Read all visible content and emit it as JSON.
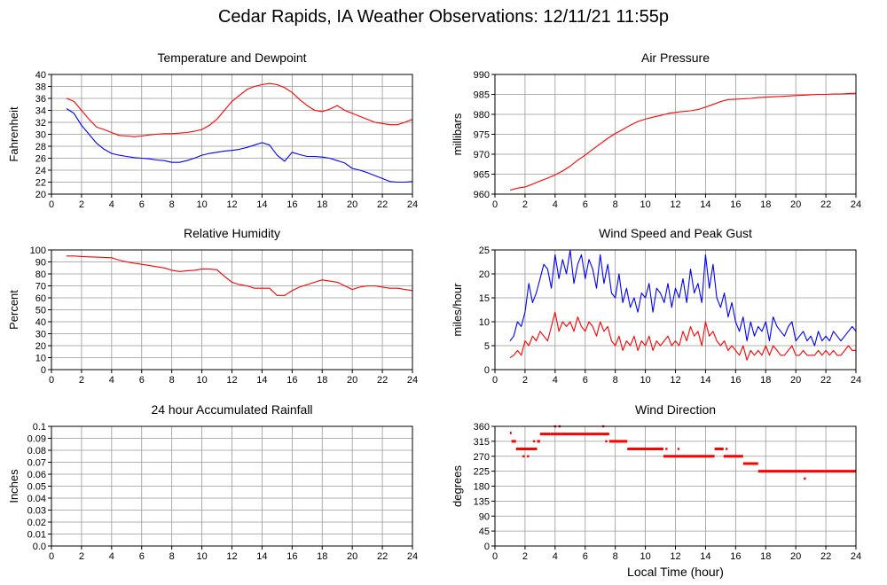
{
  "page": {
    "title": "Cedar Rapids, IA Weather Observations: 12/11/21 11:55p"
  },
  "colors": {
    "red": "#ff0000",
    "blue": "#0000ff",
    "grid": "#999999",
    "frame": "#000000"
  },
  "chart_data": [
    {
      "id": "temp",
      "type": "line",
      "title": "Temperature and Dewpoint",
      "xlabel": "",
      "ylabel": "Fahrenheit",
      "xlim": [
        0,
        24
      ],
      "ylim": [
        20,
        40
      ],
      "xticks": [
        "2",
        "4",
        "6",
        "8",
        "10",
        "12",
        "14",
        "16",
        "18",
        "20",
        "22",
        "24"
      ],
      "yticks": [
        "20",
        "22",
        "24",
        "26",
        "28",
        "30",
        "32",
        "34",
        "36",
        "38",
        "40"
      ],
      "grid": true,
      "series": [
        {
          "color": "#ff0000",
          "x": [
            1,
            1.5,
            2,
            2.5,
            3,
            3.5,
            4,
            4.5,
            5,
            5.5,
            6,
            6.5,
            7,
            7.5,
            8,
            8.5,
            9,
            9.5,
            10,
            10.5,
            11,
            11.5,
            12,
            12.5,
            13,
            13.5,
            14,
            14.5,
            15,
            15.5,
            16,
            16.5,
            17,
            17.5,
            18,
            18.5,
            19,
            19.5,
            20,
            20.5,
            21,
            21.5,
            22,
            22.5,
            23,
            23.5,
            24
          ],
          "y": [
            36,
            35.5,
            34,
            32.5,
            31.2,
            30.8,
            30.3,
            29.8,
            29.7,
            29.6,
            29.7,
            29.9,
            30,
            30.1,
            30.1,
            30.2,
            30.3,
            30.5,
            30.8,
            31.5,
            32.5,
            34,
            35.5,
            36.5,
            37.5,
            38,
            38.3,
            38.5,
            38.3,
            37.8,
            37,
            35.8,
            34.8,
            34,
            33.8,
            34.2,
            34.8,
            34,
            33.5,
            33,
            32.5,
            32,
            31.8,
            31.6,
            31.6,
            32,
            32.5
          ]
        },
        {
          "color": "#0000ff",
          "x": [
            1,
            1.5,
            2,
            2.5,
            3,
            3.5,
            4,
            4.5,
            5,
            5.5,
            6,
            6.5,
            7,
            7.5,
            8,
            8.5,
            9,
            9.5,
            10,
            10.5,
            11,
            11.5,
            12,
            12.5,
            13,
            13.5,
            14,
            14.5,
            15,
            15.5,
            16,
            16.5,
            17,
            17.5,
            18,
            18.5,
            19,
            19.5,
            20,
            20.5,
            21,
            21.5,
            22,
            22.5,
            23,
            23.5,
            24
          ],
          "y": [
            34.3,
            33.5,
            31.5,
            30,
            28.5,
            27.5,
            26.8,
            26.5,
            26.3,
            26.1,
            26,
            25.9,
            25.7,
            25.6,
            25.3,
            25.3,
            25.6,
            26,
            26.5,
            26.8,
            27,
            27.2,
            27.3,
            27.5,
            27.8,
            28.2,
            28.6,
            28.2,
            26.5,
            25.5,
            27,
            26.6,
            26.3,
            26.3,
            26.2,
            26,
            25.6,
            25.2,
            24.3,
            24,
            23.6,
            23.1,
            22.6,
            22.1,
            22,
            22,
            22.1
          ]
        }
      ]
    },
    {
      "id": "pressure",
      "type": "line",
      "title": "Air Pressure",
      "xlabel": "",
      "ylabel": "millibars",
      "xlim": [
        0,
        24
      ],
      "ylim": [
        960,
        990
      ],
      "xticks": [
        "2",
        "4",
        "6",
        "8",
        "10",
        "12",
        "14",
        "16",
        "18",
        "20",
        "22",
        "24"
      ],
      "yticks": [
        "960",
        "965",
        "970",
        "975",
        "980",
        "985",
        "990"
      ],
      "grid": true,
      "series": [
        {
          "color": "#ff0000",
          "x": [
            1,
            1.5,
            2,
            2.5,
            3,
            3.5,
            4,
            4.5,
            5,
            5.5,
            6,
            6.5,
            7,
            7.5,
            8,
            8.5,
            9,
            9.5,
            10,
            10.5,
            11,
            11.5,
            12,
            12.5,
            13,
            13.5,
            14,
            14.5,
            15,
            15.5,
            16,
            16.5,
            17,
            17.5,
            18,
            18.5,
            19,
            19.5,
            20,
            20.5,
            21,
            21.5,
            22,
            22.5,
            23,
            23.5,
            24
          ],
          "y": [
            961,
            961.5,
            961.8,
            962.5,
            963.3,
            964,
            964.8,
            965.8,
            967,
            968.5,
            969.8,
            971.2,
            972.6,
            974,
            975.2,
            976.2,
            977.3,
            978.2,
            978.8,
            979.3,
            979.7,
            980.2,
            980.5,
            980.7,
            980.9,
            981.2,
            981.8,
            982.5,
            983.2,
            983.7,
            983.8,
            983.9,
            984,
            984.2,
            984.3,
            984.4,
            984.5,
            984.6,
            984.7,
            984.8,
            984.9,
            985,
            985,
            985.1,
            985.1,
            985.2,
            985.3
          ]
        }
      ]
    },
    {
      "id": "humidity",
      "type": "line",
      "title": "Relative Humidity",
      "xlabel": "",
      "ylabel": "Percent",
      "xlim": [
        0,
        24
      ],
      "ylim": [
        0,
        100
      ],
      "xticks": [
        "2",
        "4",
        "6",
        "8",
        "10",
        "12",
        "14",
        "16",
        "18",
        "20",
        "22",
        "24"
      ],
      "yticks": [
        "0",
        "10",
        "20",
        "30",
        "40",
        "50",
        "60",
        "70",
        "80",
        "90",
        "100"
      ],
      "grid": true,
      "series": [
        {
          "color": "#ff0000",
          "x": [
            1,
            1.5,
            2,
            2.5,
            3,
            3.5,
            4,
            4.5,
            5,
            5.5,
            6,
            6.5,
            7,
            7.5,
            8,
            8.5,
            9,
            9.5,
            10,
            10.5,
            11,
            11.5,
            12,
            12.5,
            13,
            13.5,
            14,
            14.5,
            15,
            15.5,
            16,
            16.5,
            17,
            17.5,
            18,
            18.5,
            19,
            19.5,
            20,
            20.5,
            21,
            21.5,
            22,
            22.5,
            23,
            23.5,
            24
          ],
          "y": [
            95,
            95,
            94.5,
            94.2,
            94,
            93.8,
            93.5,
            91.5,
            90,
            89,
            88,
            87,
            86,
            85,
            83,
            82,
            82.5,
            83,
            84,
            84,
            83.5,
            78,
            73,
            71,
            70,
            68,
            68,
            68,
            62,
            62,
            66,
            69,
            71,
            73,
            75,
            74,
            73,
            70,
            67,
            69,
            70,
            70,
            69,
            68,
            68,
            67,
            66
          ]
        }
      ]
    },
    {
      "id": "wind",
      "type": "line",
      "title": "Wind Speed and Peak Gust",
      "xlabel": "",
      "ylabel": "miles/hour",
      "xlim": [
        0,
        24
      ],
      "ylim": [
        0,
        25
      ],
      "xticks": [
        "2",
        "4",
        "6",
        "8",
        "10",
        "12",
        "14",
        "16",
        "18",
        "20",
        "22",
        "24"
      ],
      "yticks": [
        "0",
        "5",
        "10",
        "15",
        "20",
        "25"
      ],
      "grid": true,
      "series": [
        {
          "color": "#0000ff",
          "x": [
            1,
            1.25,
            1.5,
            1.75,
            2,
            2.25,
            2.5,
            2.75,
            3,
            3.25,
            3.5,
            3.75,
            4,
            4.25,
            4.5,
            4.75,
            5,
            5.25,
            5.5,
            5.75,
            6,
            6.25,
            6.5,
            6.75,
            7,
            7.25,
            7.5,
            7.75,
            8,
            8.25,
            8.5,
            8.75,
            9,
            9.25,
            9.5,
            9.75,
            10,
            10.25,
            10.5,
            10.75,
            11,
            11.25,
            11.5,
            11.75,
            12,
            12.25,
            12.5,
            12.75,
            13,
            13.25,
            13.5,
            13.75,
            14,
            14.25,
            14.5,
            14.75,
            15,
            15.25,
            15.5,
            15.75,
            16,
            16.25,
            16.5,
            16.75,
            17,
            17.25,
            17.5,
            17.75,
            18,
            18.25,
            18.5,
            18.75,
            19,
            19.25,
            19.5,
            19.75,
            20,
            20.25,
            20.5,
            20.75,
            21,
            21.25,
            21.5,
            21.75,
            22,
            22.25,
            22.5,
            22.75,
            23,
            23.25,
            23.5,
            23.75,
            24
          ],
          "y": [
            6,
            7,
            10,
            9,
            12,
            18,
            14,
            16,
            19,
            22,
            21,
            17,
            24,
            19,
            23,
            20,
            25,
            18,
            22,
            24,
            19,
            23,
            21,
            17,
            24,
            18,
            22,
            16,
            15,
            20,
            14,
            17,
            13,
            15,
            12,
            16,
            15,
            18,
            12,
            17,
            16,
            14,
            18,
            13,
            17,
            15,
            19,
            14,
            21,
            16,
            18,
            14,
            24,
            17,
            22,
            15,
            13,
            16,
            11,
            14,
            10,
            8,
            11,
            6,
            10,
            7,
            9,
            8,
            10,
            6,
            11,
            9,
            8,
            7,
            9,
            10,
            6,
            7,
            8,
            6,
            7,
            5,
            8,
            6,
            7,
            6,
            8,
            7,
            6,
            7,
            8,
            9,
            8
          ]
        },
        {
          "color": "#ff0000",
          "x": [
            1,
            1.25,
            1.5,
            1.75,
            2,
            2.25,
            2.5,
            2.75,
            3,
            3.25,
            3.5,
            3.75,
            4,
            4.25,
            4.5,
            4.75,
            5,
            5.25,
            5.5,
            5.75,
            6,
            6.25,
            6.5,
            6.75,
            7,
            7.25,
            7.5,
            7.75,
            8,
            8.25,
            8.5,
            8.75,
            9,
            9.25,
            9.5,
            9.75,
            10,
            10.25,
            10.5,
            10.75,
            11,
            11.25,
            11.5,
            11.75,
            12,
            12.25,
            12.5,
            12.75,
            13,
            13.25,
            13.5,
            13.75,
            14,
            14.25,
            14.5,
            14.75,
            15,
            15.25,
            15.5,
            15.75,
            16,
            16.25,
            16.5,
            16.75,
            17,
            17.25,
            17.5,
            17.75,
            18,
            18.25,
            18.5,
            18.75,
            19,
            19.25,
            19.5,
            19.75,
            20,
            20.25,
            20.5,
            20.75,
            21,
            21.25,
            21.5,
            21.75,
            22,
            22.25,
            22.5,
            22.75,
            23,
            23.25,
            23.5,
            23.75,
            24
          ],
          "y": [
            2.5,
            3,
            4,
            3,
            6,
            5,
            7,
            6,
            8,
            7,
            6,
            9,
            12,
            8,
            10,
            9,
            10,
            8,
            11,
            9,
            8,
            10,
            9,
            7,
            10,
            8,
            9,
            6,
            5,
            7,
            4,
            6,
            5,
            7,
            4,
            6,
            5,
            7,
            4,
            6,
            5,
            6,
            7,
            5,
            6,
            5,
            8,
            6,
            9,
            7,
            8,
            5,
            10,
            7,
            8,
            6,
            5,
            6,
            4,
            5,
            4,
            3,
            5,
            2,
            4,
            3,
            4,
            3,
            5,
            3,
            5,
            4,
            3,
            3,
            4,
            5,
            3,
            3,
            4,
            3,
            3,
            3,
            4,
            3,
            4,
            3,
            4,
            3,
            3,
            4,
            5,
            4,
            4
          ]
        }
      ]
    },
    {
      "id": "rain",
      "type": "line",
      "title": "24 hour Accumulated Rainfall",
      "xlabel": "",
      "ylabel": "Inches",
      "xlim": [
        0,
        24
      ],
      "ylim": [
        0,
        0.1
      ],
      "xticks": [
        "2",
        "4",
        "6",
        "8",
        "10",
        "12",
        "14",
        "16",
        "18",
        "20",
        "22",
        "24"
      ],
      "yticks": [
        "0.0",
        "0.01",
        "0.02",
        "0.03",
        "0.04",
        "0.05",
        "0.06",
        "0.07",
        "0.08",
        "0.09",
        "0.1"
      ],
      "grid": true,
      "series": [
        {
          "color": "#ff0000",
          "x": [
            1,
            24
          ],
          "y": [
            0,
            0
          ]
        }
      ]
    },
    {
      "id": "winddir",
      "type": "scatter",
      "title": "Wind Direction",
      "xlabel": "Local Time (hour)",
      "ylabel": "degrees",
      "xlim": [
        0,
        24
      ],
      "ylim": [
        0,
        360
      ],
      "xticks": [
        "2",
        "4",
        "6",
        "8",
        "10",
        "12",
        "14",
        "16",
        "18",
        "20",
        "22",
        "24"
      ],
      "yticks": [
        "0",
        "45",
        "90",
        "135",
        "180",
        "225",
        "270",
        "315",
        "360"
      ],
      "grid": true,
      "segments": [
        {
          "x0": 1.0,
          "x1": 1.1,
          "y": 340
        },
        {
          "x0": 1.1,
          "x1": 1.4,
          "y": 315
        },
        {
          "x0": 1.4,
          "x1": 2.8,
          "y": 292
        },
        {
          "x0": 2.8,
          "x1": 3.0,
          "y": 315
        },
        {
          "x0": 3.0,
          "x1": 3.7,
          "y": 337
        },
        {
          "x0": 3.7,
          "x1": 4.4,
          "y": 337
        },
        {
          "x0": 4.4,
          "x1": 7.6,
          "y": 337
        },
        {
          "x0": 7.6,
          "x1": 8.8,
          "y": 315
        },
        {
          "x0": 8.8,
          "x1": 10.0,
          "y": 292
        },
        {
          "x0": 10.0,
          "x1": 11.2,
          "y": 292
        },
        {
          "x0": 11.2,
          "x1": 12.0,
          "y": 270
        },
        {
          "x0": 12.0,
          "x1": 13.5,
          "y": 270
        },
        {
          "x0": 13.5,
          "x1": 14.6,
          "y": 270
        },
        {
          "x0": 14.6,
          "x1": 15.2,
          "y": 292
        },
        {
          "x0": 15.2,
          "x1": 16.5,
          "y": 270
        },
        {
          "x0": 16.5,
          "x1": 17.5,
          "y": 248
        },
        {
          "x0": 17.5,
          "x1": 24.0,
          "y": 225
        }
      ],
      "points": [
        {
          "x": 1.9,
          "y": 270
        },
        {
          "x": 2.2,
          "y": 270
        },
        {
          "x": 2.6,
          "y": 315
        },
        {
          "x": 4.0,
          "y": 360
        },
        {
          "x": 4.3,
          "y": 360
        },
        {
          "x": 5.2,
          "y": 337
        },
        {
          "x": 7.2,
          "y": 360
        },
        {
          "x": 7.4,
          "y": 315
        },
        {
          "x": 8.4,
          "y": 315
        },
        {
          "x": 9.4,
          "y": 292
        },
        {
          "x": 11.4,
          "y": 292
        },
        {
          "x": 12.2,
          "y": 292
        },
        {
          "x": 14.8,
          "y": 292
        },
        {
          "x": 15.4,
          "y": 292
        },
        {
          "x": 20.6,
          "y": 203
        }
      ]
    }
  ]
}
